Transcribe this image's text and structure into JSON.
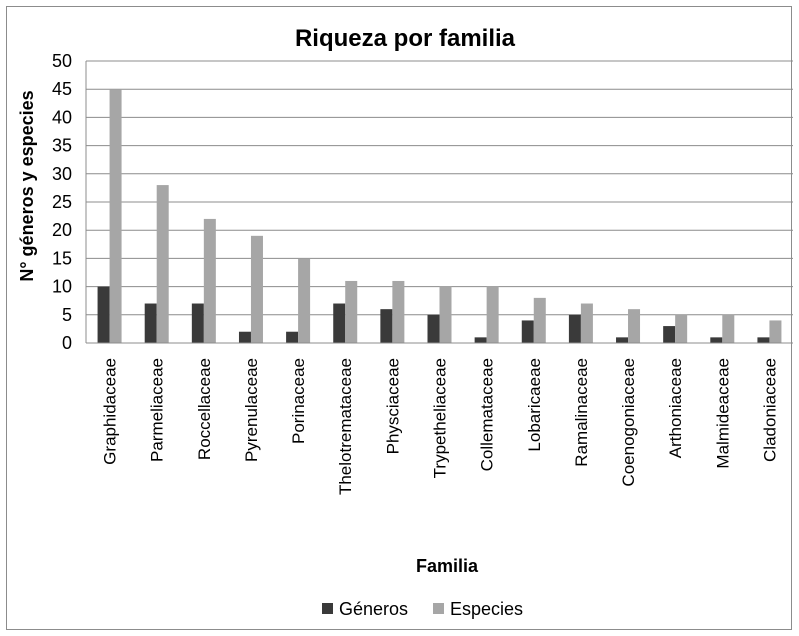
{
  "chart_data": {
    "type": "bar",
    "title": "Riqueza por familia",
    "xlabel": "Familia",
    "ylabel": "N° géneros y especies",
    "ylim": [
      0,
      50
    ],
    "yticks": [
      0,
      5,
      10,
      15,
      20,
      25,
      30,
      35,
      40,
      45,
      50
    ],
    "grid": true,
    "legend_position": "bottom",
    "categories": [
      "Graphidaceae",
      "Parmeliaceae",
      "Roccellaceae",
      "Pyrenulaceae",
      "Porinaceae",
      "Thelotremataceae",
      "Physciaceae",
      "Trypetheliaceae",
      "Collemataceae",
      "Lobaricaeae",
      "Ramalinaceae",
      "Coenogoniaceae",
      "Arthoniaceae",
      "Malmideaceae",
      "Cladoniaceae"
    ],
    "series": [
      {
        "name": "Géneros",
        "color": "#3a3a3a",
        "values": [
          10,
          7,
          7,
          2,
          2,
          7,
          6,
          5,
          1,
          4,
          5,
          1,
          3,
          1,
          1
        ]
      },
      {
        "name": "Especies",
        "color": "#a6a6a6",
        "values": [
          45,
          28,
          22,
          19,
          15,
          11,
          11,
          10,
          10,
          8,
          7,
          6,
          5,
          5,
          4
        ]
      }
    ]
  }
}
